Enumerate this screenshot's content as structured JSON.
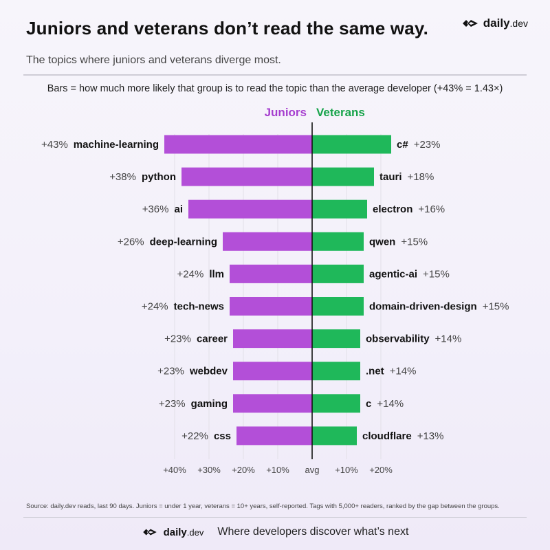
{
  "header": {
    "title": "Juniors and veterans don’t read the same way.",
    "subtitle": "The topics where juniors and veterans diverge most.",
    "explainer": "Bars = how much more likely that group is to read the topic than the average developer  (+43% = 1.43×)"
  },
  "brand": {
    "name": "daily",
    "suffix": ".dev"
  },
  "footer": {
    "source": "Source: daily.dev reads, last 90 days. Juniors = under 1 year, veterans = 10+ years, self-reported. Tags with 5,000+ readers, ranked by the gap between the groups.",
    "tagline": "Where developers discover what’s next"
  },
  "chart_data": {
    "type": "bar",
    "orientation": "diverging-horizontal",
    "x_center_label": "avg",
    "x_ticks_left": [
      "+40%",
      "+30%",
      "+20%",
      "+10%"
    ],
    "x_ticks_right": [
      "+10%",
      "+20%"
    ],
    "colors": {
      "juniors": "#b34fd8",
      "veterans": "#1fb85a",
      "juniors_text": "#a63ecf",
      "veterans_text": "#17a34a"
    },
    "series": [
      {
        "name": "Juniors",
        "rows": [
          {
            "tag": "machine-learning",
            "value": 43,
            "label": "+43%"
          },
          {
            "tag": "python",
            "value": 38,
            "label": "+38%"
          },
          {
            "tag": "ai",
            "value": 36,
            "label": "+36%"
          },
          {
            "tag": "deep-learning",
            "value": 26,
            "label": "+26%"
          },
          {
            "tag": "llm",
            "value": 24,
            "label": "+24%"
          },
          {
            "tag": "tech-news",
            "value": 24,
            "label": "+24%"
          },
          {
            "tag": "career",
            "value": 23,
            "label": "+23%"
          },
          {
            "tag": "webdev",
            "value": 23,
            "label": "+23%"
          },
          {
            "tag": "gaming",
            "value": 23,
            "label": "+23%"
          },
          {
            "tag": "css",
            "value": 22,
            "label": "+22%"
          }
        ]
      },
      {
        "name": "Veterans",
        "rows": [
          {
            "tag": "c#",
            "value": 23,
            "label": "+23%"
          },
          {
            "tag": "tauri",
            "value": 18,
            "label": "+18%"
          },
          {
            "tag": "electron",
            "value": 16,
            "label": "+16%"
          },
          {
            "tag": "qwen",
            "value": 15,
            "label": "+15%"
          },
          {
            "tag": "agentic-ai",
            "value": 15,
            "label": "+15%"
          },
          {
            "tag": "domain-driven-design",
            "value": 15,
            "label": "+15%"
          },
          {
            "tag": "observability",
            "value": 14,
            "label": "+14%"
          },
          {
            "tag": ".net",
            "value": 14,
            "label": "+14%"
          },
          {
            "tag": "c",
            "value": 14,
            "label": "+14%"
          },
          {
            "tag": "cloudflare",
            "value": 13,
            "label": "+13%"
          }
        ]
      }
    ]
  }
}
